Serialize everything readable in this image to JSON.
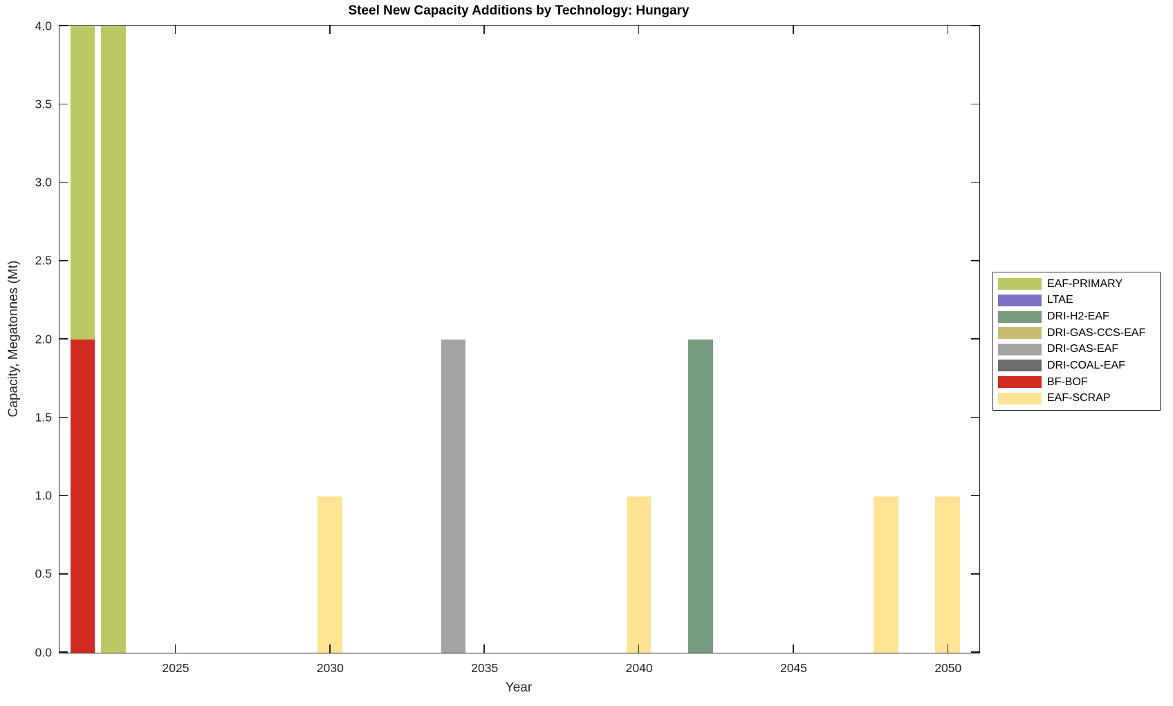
{
  "chart_data": {
    "type": "bar",
    "stacked": true,
    "title": "Steel New Capacity Additions by Technology: Hungary",
    "xlabel": "Year",
    "ylabel": "Capacity, Megatonnes (Mt)",
    "xlim": [
      2021.25,
      2051
    ],
    "ylim": [
      0,
      4
    ],
    "xticks": [
      2025,
      2030,
      2035,
      2040,
      2045,
      2050
    ],
    "yticks": [
      0,
      0.5,
      1,
      1.5,
      2,
      2.5,
      3,
      3.5,
      4
    ],
    "ytick_labels": [
      "0.0",
      "0.5",
      "1.0",
      "1.5",
      "2.0",
      "2.5",
      "3.0",
      "3.5",
      "4.0"
    ],
    "bar_width_years": 0.8,
    "grid": false,
    "legend_position": "outside-right",
    "legend": [
      "EAF-PRIMARY",
      "LTAE",
      "DRI-H2-EAF",
      "DRI-GAS-CCS-EAF",
      "DRI-GAS-EAF",
      "DRI-COAL-EAF",
      "BF-BOF",
      "EAF-SCRAP"
    ],
    "colors": {
      "EAF-PRIMARY": "#bdc763",
      "LTAE": "#7a72c4",
      "DRI-H2-EAF": "#779c7e",
      "DRI-GAS-CCS-EAF": "#c6bc75",
      "DRI-GAS-EAF": "#a3a3a3",
      "DRI-COAL-EAF": "#6d6d6d",
      "BF-BOF": "#d02a21",
      "EAF-SCRAP": "#ffe395"
    },
    "bars": [
      {
        "year": 2022,
        "segments": [
          {
            "tech": "BF-BOF",
            "value": 2.0
          },
          {
            "tech": "EAF-PRIMARY",
            "value": 2.0
          }
        ]
      },
      {
        "year": 2023,
        "segments": [
          {
            "tech": "EAF-PRIMARY",
            "value": 4.0
          }
        ]
      },
      {
        "year": 2030,
        "segments": [
          {
            "tech": "EAF-SCRAP",
            "value": 1.0
          }
        ]
      },
      {
        "year": 2034,
        "segments": [
          {
            "tech": "DRI-GAS-EAF",
            "value": 2.0
          }
        ]
      },
      {
        "year": 2040,
        "segments": [
          {
            "tech": "EAF-SCRAP",
            "value": 1.0
          }
        ]
      },
      {
        "year": 2042,
        "segments": [
          {
            "tech": "DRI-H2-EAF",
            "value": 2.0
          }
        ]
      },
      {
        "year": 2048,
        "segments": [
          {
            "tech": "EAF-SCRAP",
            "value": 1.0
          }
        ]
      },
      {
        "year": 2050,
        "segments": [
          {
            "tech": "EAF-SCRAP",
            "value": 1.0
          }
        ]
      }
    ]
  }
}
